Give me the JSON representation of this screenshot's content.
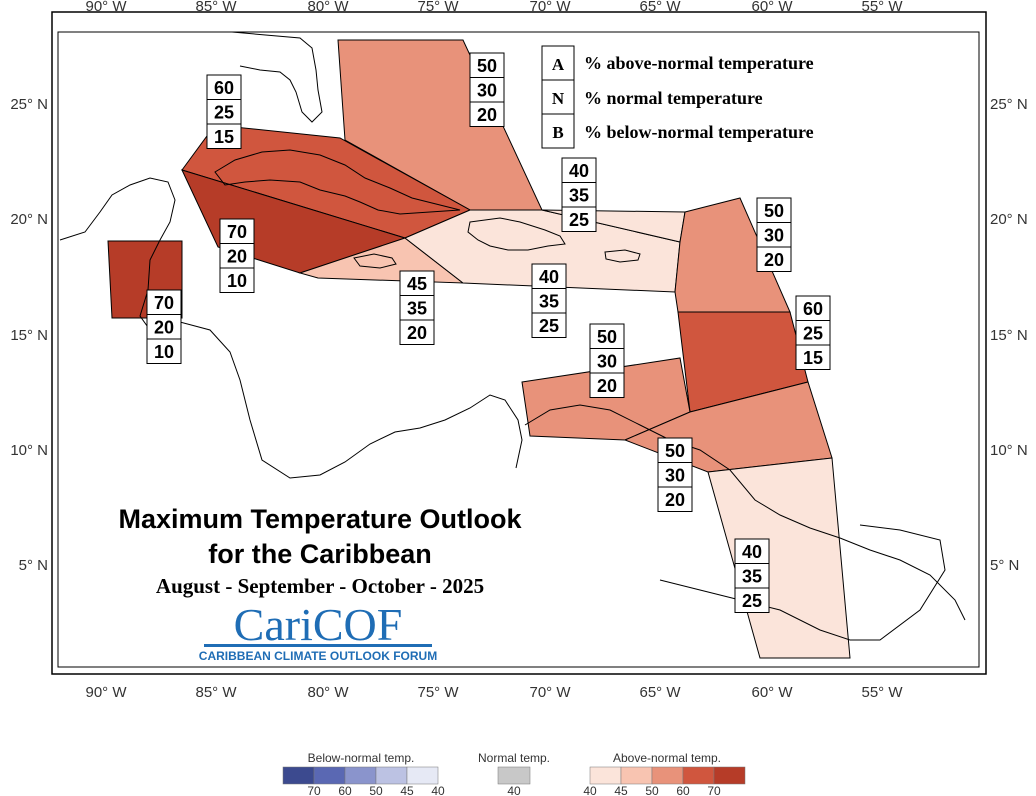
{
  "map": {
    "title_line1": "Maximum Temperature Outlook",
    "title_line2": "for the Caribbean",
    "subtitle": "August - September - October - 2025",
    "logo_text": "CariCOF",
    "logo_subtitle": "CARIBBEAN CLIMATE OUTLOOK FORUM"
  },
  "axes": {
    "x_ticks": [
      "90° W",
      "85° W",
      "80° W",
      "75° W",
      "70° W",
      "65° W",
      "60° W",
      "55° W"
    ],
    "y_ticks": [
      "25° N",
      "20° N",
      "15° N",
      "10° N",
      "5° N"
    ]
  },
  "key": [
    {
      "letter": "A",
      "text": "% above-normal temperature"
    },
    {
      "letter": "N",
      "text": "% normal temperature"
    },
    {
      "letter": "B",
      "text": "% below-normal temperature"
    }
  ],
  "regions": [
    {
      "name": "bahamas",
      "above": "50",
      "normal": "30",
      "below": "20",
      "fill_color": "#e8927a"
    },
    {
      "name": "cuba",
      "above": "60",
      "normal": "25",
      "below": "15",
      "fill_color": "#d0563e"
    },
    {
      "name": "cayman-jamaica-west",
      "above": "70",
      "normal": "20",
      "below": "10",
      "fill_color": "#b63c28"
    },
    {
      "name": "belize",
      "above": "70",
      "normal": "20",
      "below": "10",
      "fill_color": "#b63c28"
    },
    {
      "name": "jamaica",
      "above": "45",
      "normal": "35",
      "below": "20",
      "fill_color": "#f8c4b1"
    },
    {
      "name": "hispaniola",
      "above": "40",
      "normal": "35",
      "below": "25",
      "fill_color": "#fbe4da"
    },
    {
      "name": "puerto-rico",
      "above": "40",
      "normal": "35",
      "below": "25",
      "fill_color": "#fbe4da"
    },
    {
      "name": "leeward-islands",
      "above": "50",
      "normal": "30",
      "below": "20",
      "fill_color": "#e8927a"
    },
    {
      "name": "windward-islands",
      "above": "60",
      "normal": "25",
      "below": "15",
      "fill_color": "#d0563e"
    },
    {
      "name": "abc-islands",
      "above": "50",
      "normal": "30",
      "below": "20",
      "fill_color": "#e8927a"
    },
    {
      "name": "trinidad-tobago",
      "above": "50",
      "normal": "30",
      "below": "20",
      "fill_color": "#e8927a"
    },
    {
      "name": "guianas",
      "above": "40",
      "normal": "35",
      "below": "25",
      "fill_color": "#fbe4da"
    }
  ],
  "legend": {
    "below_title": "Below-normal temp.",
    "normal_title": "Normal temp.",
    "above_title": "Above-normal temp.",
    "below_ticks": [
      "70",
      "60",
      "50",
      "45",
      "40"
    ],
    "normal_ticks": [
      "40"
    ],
    "above_ticks": [
      "40",
      "45",
      "50",
      "60",
      "70"
    ],
    "below_colors": [
      "#3c4a8f",
      "#5a68b3",
      "#8a94cc",
      "#bcc2e3",
      "#e6e9f5"
    ],
    "normal_color": "#c8c8c8",
    "above_colors": [
      "#fbe4da",
      "#f8c4b1",
      "#e8927a",
      "#d0563e",
      "#b63c28"
    ]
  }
}
